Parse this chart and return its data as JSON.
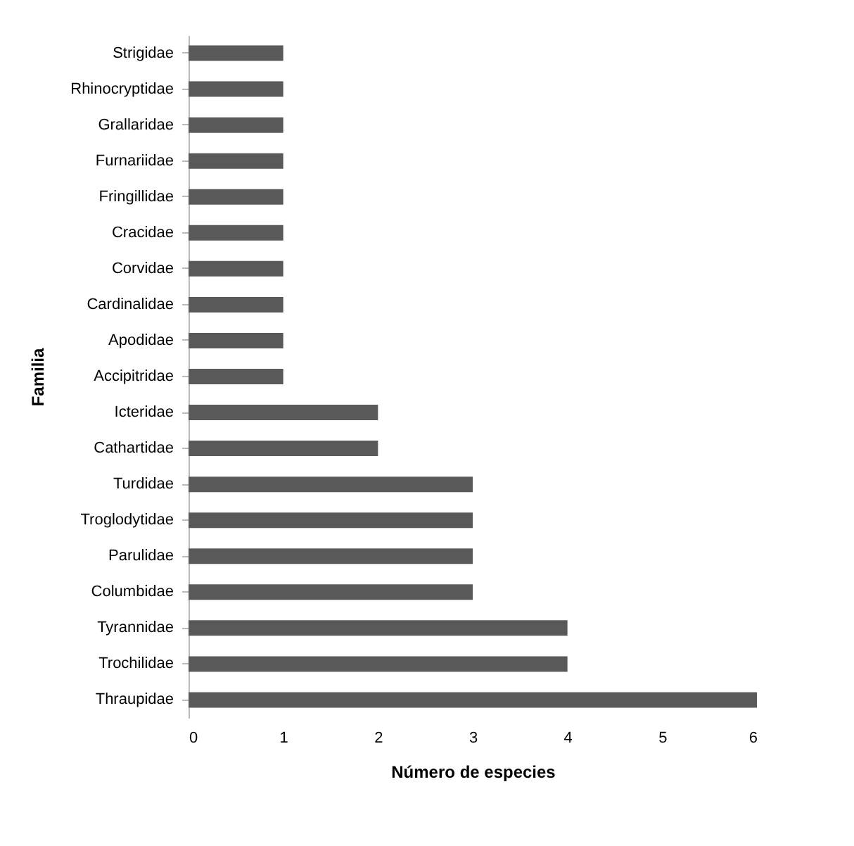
{
  "chart_data": {
    "type": "bar",
    "orientation": "horizontal",
    "xlabel": "Número de especies",
    "ylabel": "Familia",
    "categories": [
      "Strigidae",
      "Rhinocryptidae",
      "Grallaridae",
      "Furnariidae",
      "Fringillidae",
      "Cracidae",
      "Corvidae",
      "Cardinalidae",
      "Apodidae",
      "Accipitridae",
      "Icteridae",
      "Cathartidae",
      "Turdidae",
      "Troglodytidae",
      "Parulidae",
      "Columbidae",
      "Tyrannidae",
      "Trochilidae",
      "Thraupidae"
    ],
    "values": [
      1,
      1,
      1,
      1,
      1,
      1,
      1,
      1,
      1,
      1,
      2,
      2,
      3,
      3,
      3,
      3,
      4,
      4,
      6
    ],
    "color": "#595959",
    "xlim": [
      0,
      6
    ],
    "xticks": [
      0,
      1,
      2,
      3,
      4,
      5,
      6
    ],
    "grid": false
  }
}
